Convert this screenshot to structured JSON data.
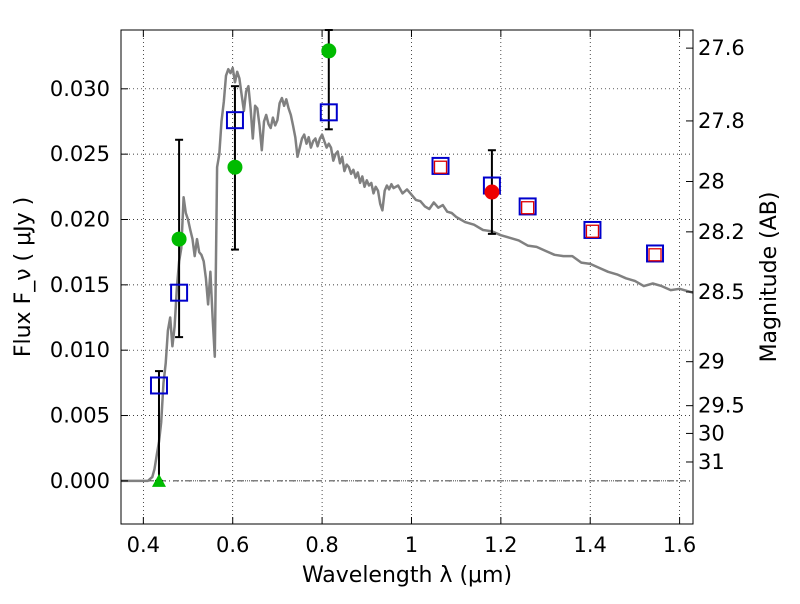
{
  "chart_data": {
    "type": "scatter",
    "xlabel": "Wavelength  λ (μm)",
    "ylabel": "Flux  F_ν  ( μJy )",
    "y2label": "Magnitude (AB)",
    "xlim": [
      0.35,
      1.63
    ],
    "ylim": [
      -0.0033,
      0.0345
    ],
    "grid": true,
    "x_ticks": [
      {
        "value": 0.4,
        "label": "0.4"
      },
      {
        "value": 0.6,
        "label": "0.6"
      },
      {
        "value": 0.8,
        "label": "0.8"
      },
      {
        "value": 1.0,
        "label": "1"
      },
      {
        "value": 1.2,
        "label": "1.2"
      },
      {
        "value": 1.4,
        "label": "1.4"
      },
      {
        "value": 1.6,
        "label": "1.6"
      }
    ],
    "y_ticks": [
      {
        "value": 0.0,
        "label": "0.000"
      },
      {
        "value": 0.005,
        "label": "0.005"
      },
      {
        "value": 0.01,
        "label": "0.010"
      },
      {
        "value": 0.015,
        "label": "0.015"
      },
      {
        "value": 0.02,
        "label": "0.020"
      },
      {
        "value": 0.025,
        "label": "0.025"
      },
      {
        "value": 0.03,
        "label": "0.030"
      }
    ],
    "mag_ticks": [
      {
        "value": 27.6,
        "label": "27.6"
      },
      {
        "value": 27.8,
        "label": "27.8"
      },
      {
        "value": 28.0,
        "label": "28"
      },
      {
        "value": 28.2,
        "label": "28.2"
      },
      {
        "value": 28.5,
        "label": "28.5"
      },
      {
        "value": 29.0,
        "label": "29"
      },
      {
        "value": 29.5,
        "label": "29.5"
      },
      {
        "value": 30.0,
        "label": "30"
      },
      {
        "value": 31.0,
        "label": "31"
      }
    ],
    "series": [
      {
        "kind": "sed_line",
        "color": "#808080",
        "points": [
          [
            0.35,
            0.0
          ],
          [
            0.41,
            0.0
          ],
          [
            0.42,
            0.0003
          ],
          [
            0.425,
            0.0009
          ],
          [
            0.43,
            0.002
          ],
          [
            0.435,
            0.003
          ],
          [
            0.44,
            0.0045
          ],
          [
            0.445,
            0.0075
          ],
          [
            0.45,
            0.009
          ],
          [
            0.455,
            0.0115
          ],
          [
            0.46,
            0.0125
          ],
          [
            0.465,
            0.0103
          ],
          [
            0.47,
            0.0118
          ],
          [
            0.475,
            0.0148
          ],
          [
            0.48,
            0.0168
          ],
          [
            0.485,
            0.0178
          ],
          [
            0.49,
            0.0217
          ],
          [
            0.495,
            0.0205
          ],
          [
            0.5,
            0.02
          ],
          [
            0.505,
            0.0192
          ],
          [
            0.51,
            0.0185
          ],
          [
            0.515,
            0.0172
          ],
          [
            0.52,
            0.0185
          ],
          [
            0.525,
            0.0175
          ],
          [
            0.53,
            0.0173
          ],
          [
            0.535,
            0.0168
          ],
          [
            0.54,
            0.0155
          ],
          [
            0.545,
            0.0135
          ],
          [
            0.55,
            0.016
          ],
          [
            0.555,
            0.0125
          ],
          [
            0.56,
            0.0095
          ],
          [
            0.565,
            0.024
          ],
          [
            0.57,
            0.025
          ],
          [
            0.575,
            0.0275
          ],
          [
            0.58,
            0.029
          ],
          [
            0.585,
            0.031
          ],
          [
            0.59,
            0.0315
          ],
          [
            0.595,
            0.0312
          ],
          [
            0.6,
            0.0316
          ],
          [
            0.605,
            0.0305
          ],
          [
            0.61,
            0.0313
          ],
          [
            0.615,
            0.0308
          ],
          [
            0.62,
            0.0295
          ],
          [
            0.625,
            0.0283
          ],
          [
            0.63,
            0.0298
          ],
          [
            0.635,
            0.0302
          ],
          [
            0.64,
            0.0285
          ],
          [
            0.645,
            0.0262
          ],
          [
            0.65,
            0.0287
          ],
          [
            0.655,
            0.0285
          ],
          [
            0.66,
            0.0272
          ],
          [
            0.665,
            0.0253
          ],
          [
            0.67,
            0.0275
          ],
          [
            0.675,
            0.028
          ],
          [
            0.68,
            0.0273
          ],
          [
            0.685,
            0.027
          ],
          [
            0.69,
            0.0278
          ],
          [
            0.695,
            0.0272
          ],
          [
            0.7,
            0.0276
          ],
          [
            0.705,
            0.0289
          ],
          [
            0.71,
            0.0293
          ],
          [
            0.715,
            0.0287
          ],
          [
            0.72,
            0.0292
          ],
          [
            0.725,
            0.0285
          ],
          [
            0.73,
            0.028
          ],
          [
            0.735,
            0.0272
          ],
          [
            0.74,
            0.0263
          ],
          [
            0.745,
            0.0248
          ],
          [
            0.75,
            0.0255
          ],
          [
            0.755,
            0.0262
          ],
          [
            0.76,
            0.0265
          ],
          [
            0.765,
            0.0258
          ],
          [
            0.77,
            0.0263
          ],
          [
            0.775,
            0.0255
          ],
          [
            0.78,
            0.026
          ],
          [
            0.785,
            0.0262
          ],
          [
            0.79,
            0.0256
          ],
          [
            0.795,
            0.0262
          ],
          [
            0.8,
            0.0265
          ],
          [
            0.805,
            0.026
          ],
          [
            0.81,
            0.0255
          ],
          [
            0.815,
            0.0258
          ],
          [
            0.82,
            0.0255
          ],
          [
            0.825,
            0.0245
          ],
          [
            0.83,
            0.025
          ],
          [
            0.835,
            0.0252
          ],
          [
            0.84,
            0.0243
          ],
          [
            0.845,
            0.0248
          ],
          [
            0.85,
            0.0237
          ],
          [
            0.855,
            0.0242
          ],
          [
            0.86,
            0.024
          ],
          [
            0.865,
            0.0235
          ],
          [
            0.87,
            0.0238
          ],
          [
            0.875,
            0.0232
          ],
          [
            0.88,
            0.0236
          ],
          [
            0.885,
            0.0228
          ],
          [
            0.89,
            0.0233
          ],
          [
            0.895,
            0.0225
          ],
          [
            0.9,
            0.023
          ],
          [
            0.905,
            0.0226
          ],
          [
            0.91,
            0.0228
          ],
          [
            0.915,
            0.022
          ],
          [
            0.92,
            0.0225
          ],
          [
            0.925,
            0.0222
          ],
          [
            0.93,
            0.0212
          ],
          [
            0.935,
            0.0207
          ],
          [
            0.94,
            0.0222
          ],
          [
            0.945,
            0.0226
          ],
          [
            0.95,
            0.0223
          ],
          [
            0.955,
            0.0227
          ],
          [
            0.96,
            0.0224
          ],
          [
            0.97,
            0.0226
          ],
          [
            0.98,
            0.022
          ],
          [
            0.99,
            0.0223
          ],
          [
            1.0,
            0.0219
          ],
          [
            1.01,
            0.0215
          ],
          [
            1.02,
            0.0214
          ],
          [
            1.03,
            0.021
          ],
          [
            1.04,
            0.0208
          ],
          [
            1.05,
            0.0213
          ],
          [
            1.06,
            0.0209
          ],
          [
            1.07,
            0.0211
          ],
          [
            1.08,
            0.0206
          ],
          [
            1.09,
            0.0205
          ],
          [
            1.1,
            0.0202
          ],
          [
            1.12,
            0.0198
          ],
          [
            1.14,
            0.0196
          ],
          [
            1.16,
            0.0192
          ],
          [
            1.18,
            0.0191
          ],
          [
            1.2,
            0.0188
          ],
          [
            1.22,
            0.0186
          ],
          [
            1.24,
            0.0184
          ],
          [
            1.26,
            0.018
          ],
          [
            1.28,
            0.0179
          ],
          [
            1.3,
            0.0176
          ],
          [
            1.32,
            0.0173
          ],
          [
            1.34,
            0.0172
          ],
          [
            1.36,
            0.0172
          ],
          [
            1.38,
            0.0167
          ],
          [
            1.4,
            0.0166
          ],
          [
            1.42,
            0.0163
          ],
          [
            1.44,
            0.016
          ],
          [
            1.46,
            0.0158
          ],
          [
            1.48,
            0.0155
          ],
          [
            1.5,
            0.0153
          ],
          [
            1.52,
            0.0149
          ],
          [
            1.54,
            0.0151
          ],
          [
            1.56,
            0.0149
          ],
          [
            1.58,
            0.0146
          ],
          [
            1.6,
            0.0147
          ],
          [
            1.63,
            0.0144
          ]
        ]
      },
      {
        "kind": "open_square",
        "color": "#0000cc",
        "points": [
          [
            0.435,
            0.0073
          ],
          [
            0.48,
            0.0144
          ],
          [
            0.605,
            0.0276
          ],
          [
            0.815,
            0.0282
          ],
          [
            1.065,
            0.0241
          ],
          [
            1.18,
            0.0226
          ],
          [
            1.26,
            0.021
          ],
          [
            1.405,
            0.0192
          ],
          [
            1.545,
            0.0174
          ]
        ]
      },
      {
        "kind": "open_square_small",
        "color": "#dd0000",
        "points": [
          [
            1.065,
            0.024
          ],
          [
            1.26,
            0.0209
          ],
          [
            1.405,
            0.0191
          ],
          [
            1.545,
            0.0173
          ]
        ]
      },
      {
        "kind": "filled_circle",
        "color": "#00bb00",
        "points": [
          [
            0.48,
            0.0185
          ],
          [
            0.605,
            0.024
          ],
          [
            0.815,
            0.0329
          ]
        ]
      },
      {
        "kind": "filled_circle",
        "color": "#ee0000",
        "points": [
          [
            1.18,
            0.0221
          ]
        ]
      },
      {
        "kind": "filled_triangle",
        "color": "#00bb00",
        "points": [
          [
            0.435,
            0.0
          ]
        ]
      }
    ],
    "error_bars": [
      {
        "x": 0.435,
        "low": 0.0,
        "high": 0.0084
      },
      {
        "x": 0.48,
        "low": 0.011,
        "high": 0.0261
      },
      {
        "x": 0.605,
        "low": 0.0177,
        "high": 0.0302
      },
      {
        "x": 0.815,
        "low": 0.0269,
        "high": 0.0345
      },
      {
        "x": 1.18,
        "low": 0.0189,
        "high": 0.0253
      }
    ]
  }
}
